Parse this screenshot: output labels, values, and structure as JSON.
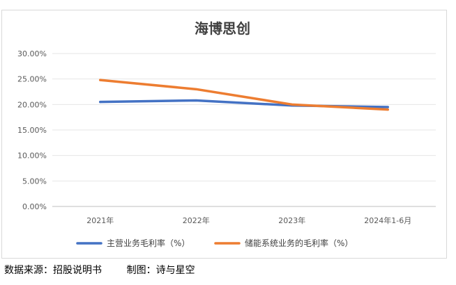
{
  "chart_data": {
    "type": "line",
    "title": "海博思创",
    "categories": [
      "2021年",
      "2022年",
      "2023年",
      "2024年1-6月"
    ],
    "series": [
      {
        "name": "主营业务毛利率（%）",
        "color": "#4472C4",
        "values": [
          20.5,
          20.8,
          19.8,
          19.5
        ]
      },
      {
        "name": "储能系统业务的毛利率（%）",
        "color": "#ED7D31",
        "values": [
          24.8,
          23.0,
          20.0,
          19.0
        ]
      }
    ],
    "y_ticks": [
      "0.00%",
      "5.00%",
      "10.00%",
      "15.00%",
      "20.00%",
      "25.00%",
      "30.00%"
    ],
    "ylim": [
      0,
      30
    ],
    "grid": true,
    "legend_position": "bottom"
  },
  "footer": {
    "source": "数据来源：招股说明书",
    "credit": "制图：诗与星空"
  }
}
